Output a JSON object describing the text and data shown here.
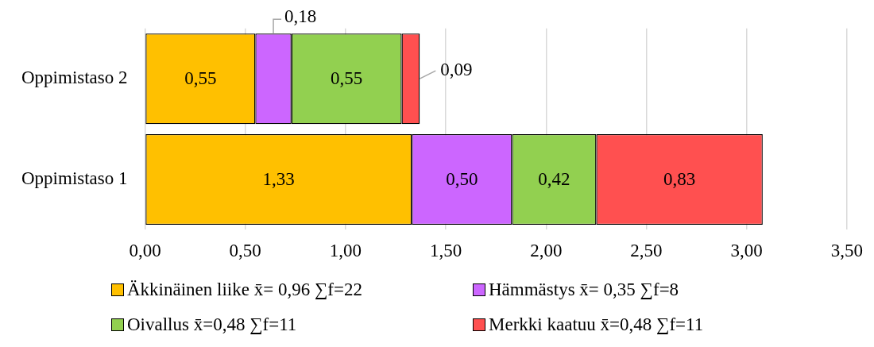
{
  "chart_data": {
    "type": "bar",
    "orientation": "horizontal",
    "stacked": true,
    "categories": [
      "Oppimistaso 2",
      "Oppimistaso 1"
    ],
    "series": [
      {
        "name": "Äkkinäinen liike x̄= 0,96  ∑f=22",
        "color": "#ffc000",
        "values": [
          0.55,
          1.33
        ],
        "value_labels": [
          "0,55",
          "1,33"
        ]
      },
      {
        "name": "Hämmästys x̄= 0,35  ∑f=8",
        "color": "#cc66ff",
        "values": [
          0.18,
          0.5
        ],
        "value_labels": [
          "0,18",
          "0,50"
        ]
      },
      {
        "name": "Oivallus x̄=0,48  ∑f=11",
        "color": "#92d050",
        "values": [
          0.55,
          0.42
        ],
        "value_labels": [
          "0,55",
          "0,42"
        ]
      },
      {
        "name": "Merkki kaatuu x̄=0,48  ∑f=11",
        "color": "#ff5050",
        "values": [
          0.09,
          0.83
        ],
        "value_labels": [
          "0,09",
          "0,83"
        ]
      }
    ],
    "xlim": [
      0,
      3.5
    ],
    "xticks": [
      {
        "value": 0,
        "label": "0,00"
      },
      {
        "value": 0.5,
        "label": "0,50"
      },
      {
        "value": 1,
        "label": "1,00"
      },
      {
        "value": 1.5,
        "label": "1,50"
      },
      {
        "value": 2,
        "label": "2,00"
      },
      {
        "value": 2.5,
        "label": "2,50"
      },
      {
        "value": 3,
        "label": "3,00"
      },
      {
        "value": 3.5,
        "label": "3,50"
      }
    ],
    "grid": "x",
    "legend": "bottom"
  }
}
